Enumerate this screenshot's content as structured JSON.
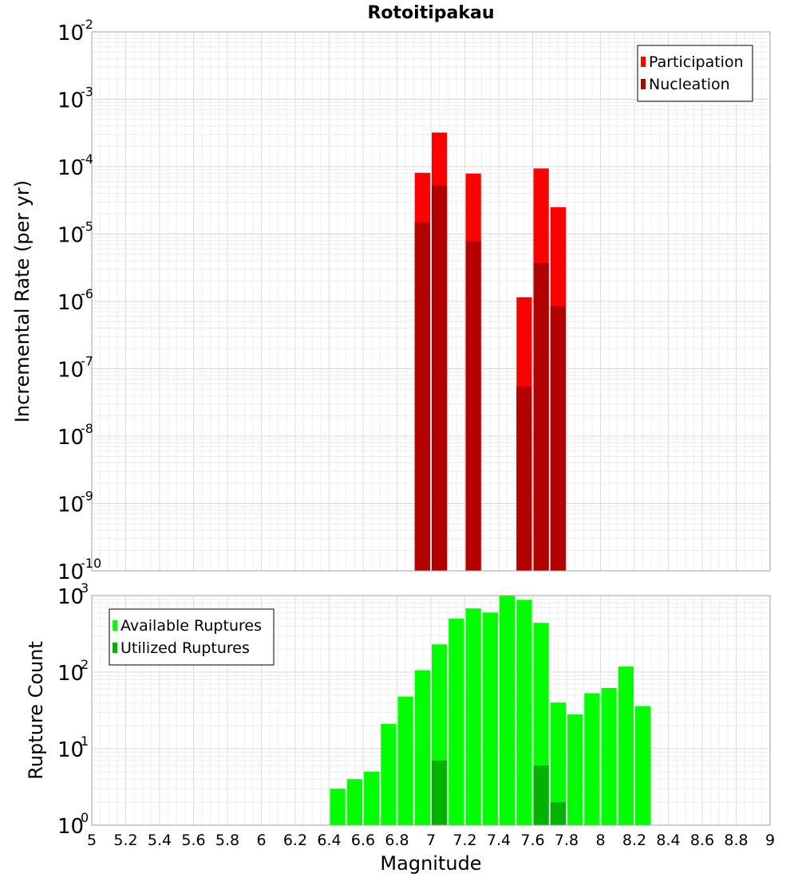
{
  "chart_data": {
    "title": "Rotoitipakau",
    "xlabel": "Magnitude",
    "xlim": [
      5,
      9
    ],
    "xticks": [
      "5",
      "5.2",
      "5.4",
      "5.6",
      "5.8",
      "6",
      "6.2",
      "6.4",
      "6.6",
      "6.8",
      "7",
      "7.2",
      "7.4",
      "7.6",
      "7.8",
      "8",
      "8.2",
      "8.4",
      "8.6",
      "8.8",
      "9"
    ],
    "grid": true,
    "panels": [
      {
        "type": "bar",
        "scale": "log",
        "ylabel": "Incremental Rate (per yr)",
        "ylim_exponents": [
          -10,
          -2
        ],
        "legend_position": "top-right",
        "series": [
          {
            "name": "Participation",
            "color": "#ff0000",
            "points": [
              {
                "x": 6.95,
                "y": 8.1e-05
              },
              {
                "x": 7.05,
                "y": 0.00032
              },
              {
                "x": 7.25,
                "y": 7.9e-05
              },
              {
                "x": 7.55,
                "y": 1.15e-06
              },
              {
                "x": 7.65,
                "y": 9.4e-05
              },
              {
                "x": 7.75,
                "y": 2.5e-05
              }
            ]
          },
          {
            "name": "Nucleation",
            "color": "#b30000",
            "points": [
              {
                "x": 6.95,
                "y": 1.5e-05
              },
              {
                "x": 7.05,
                "y": 5.3e-05
              },
              {
                "x": 7.25,
                "y": 7.8e-06
              },
              {
                "x": 7.55,
                "y": 5.5e-08
              },
              {
                "x": 7.65,
                "y": 3.7e-06
              },
              {
                "x": 7.75,
                "y": 8.5e-07
              }
            ]
          }
        ]
      },
      {
        "type": "bar",
        "scale": "log",
        "ylabel": "Rupture Count",
        "ylim_exponents": [
          0,
          3
        ],
        "legend_position": "top-left",
        "series": [
          {
            "name": "Available Ruptures",
            "color": "#00ff00",
            "points": [
              {
                "x": 6.25,
                "y": 1
              },
              {
                "x": 6.35,
                "y": 1
              },
              {
                "x": 6.45,
                "y": 3
              },
              {
                "x": 6.55,
                "y": 4
              },
              {
                "x": 6.65,
                "y": 5
              },
              {
                "x": 6.75,
                "y": 21
              },
              {
                "x": 6.85,
                "y": 48
              },
              {
                "x": 6.95,
                "y": 106
              },
              {
                "x": 7.05,
                "y": 230
              },
              {
                "x": 7.15,
                "y": 500
              },
              {
                "x": 7.25,
                "y": 680
              },
              {
                "x": 7.35,
                "y": 600
              },
              {
                "x": 7.45,
                "y": 1000
              },
              {
                "x": 7.55,
                "y": 880
              },
              {
                "x": 7.65,
                "y": 440
              },
              {
                "x": 7.75,
                "y": 40
              },
              {
                "x": 7.85,
                "y": 28
              },
              {
                "x": 7.95,
                "y": 53
              },
              {
                "x": 8.05,
                "y": 62
              },
              {
                "x": 8.15,
                "y": 118
              },
              {
                "x": 8.25,
                "y": 36
              }
            ]
          },
          {
            "name": "Utilized Ruptures",
            "color": "#00b300",
            "points": [
              {
                "x": 6.95,
                "y": 1
              },
              {
                "x": 7.05,
                "y": 7
              },
              {
                "x": 7.25,
                "y": 1
              },
              {
                "x": 7.55,
                "y": 1
              },
              {
                "x": 7.65,
                "y": 6
              },
              {
                "x": 7.75,
                "y": 2
              }
            ]
          }
        ]
      }
    ]
  }
}
